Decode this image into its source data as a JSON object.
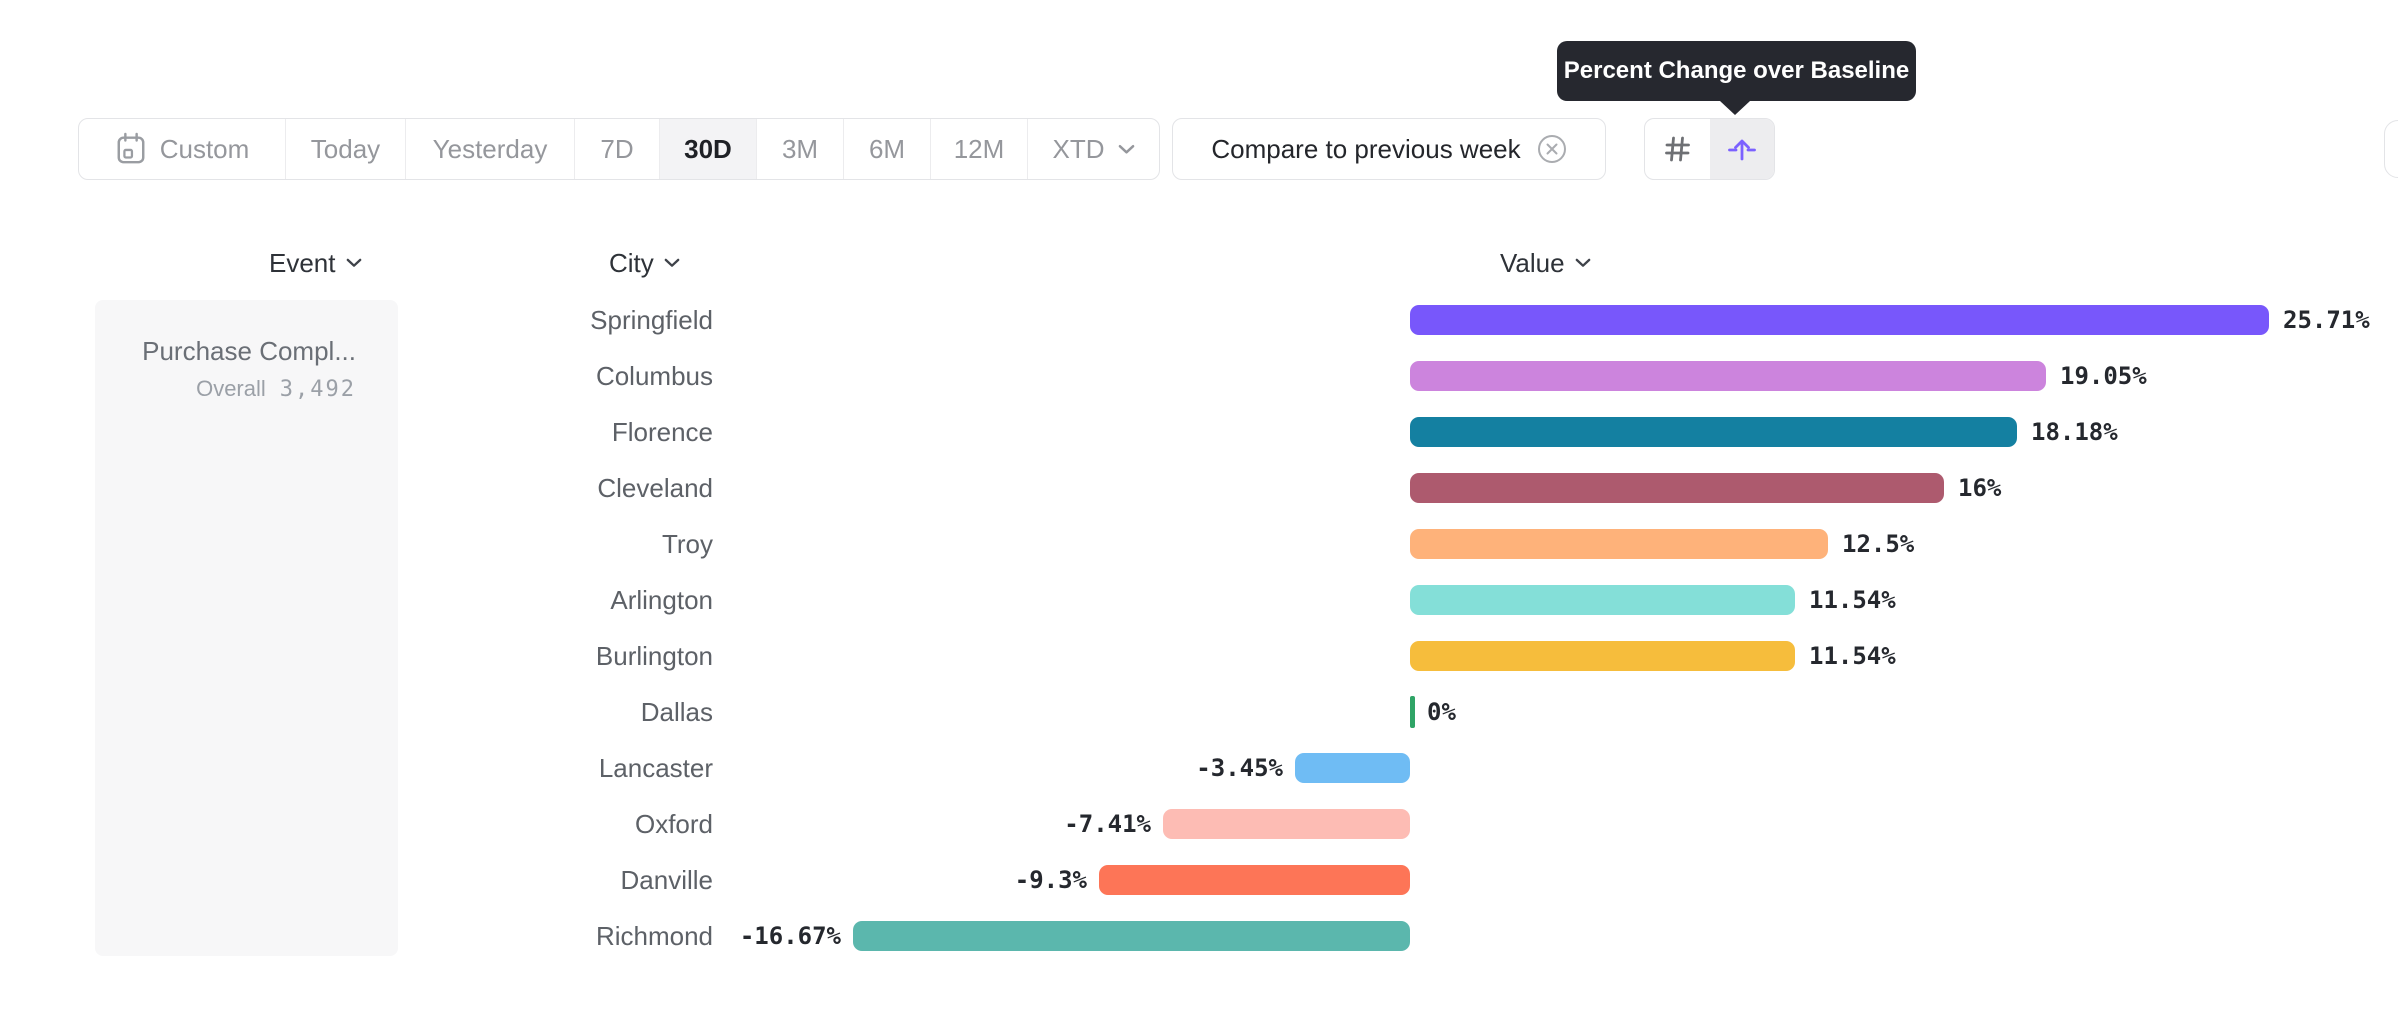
{
  "toolbar": {
    "date_ranges": [
      "Custom",
      "Today",
      "Yesterday",
      "7D",
      "30D",
      "3M",
      "6M",
      "12M",
      "XTD"
    ],
    "selected_range": "30D",
    "compare_chip_label": "Compare to previous week",
    "icon_buttons": [
      {
        "name": "hash-icon",
        "active": false
      },
      {
        "name": "arrow-up-from-baseline-icon",
        "active": true
      }
    ]
  },
  "tooltip": {
    "text": "Percent Change over Baseline"
  },
  "columns": {
    "event": "Event",
    "city": "City",
    "value": "Value"
  },
  "event_panel": {
    "event_name": "Purchase Compl...",
    "overall_label": "Overall",
    "overall_value": "3,492"
  },
  "colors": {
    "accent_purple": "#7b61ff",
    "tooltip_background": "#26282f",
    "selected_button_background": "#f3f3f5"
  },
  "chart_data": {
    "type": "bar",
    "orientation": "horizontal",
    "unit": "%",
    "baseline": 0,
    "categories": [
      "Springfield",
      "Columbus",
      "Florence",
      "Cleveland",
      "Troy",
      "Arlington",
      "Burlington",
      "Dallas",
      "Lancaster",
      "Oxford",
      "Danville",
      "Richmond"
    ],
    "values": [
      25.71,
      19.05,
      18.18,
      16,
      12.5,
      11.54,
      11.54,
      0,
      -3.45,
      -7.41,
      -9.3,
      -16.67
    ],
    "labels": [
      "25.71%",
      "19.05%",
      "18.18%",
      "16%",
      "12.5%",
      "11.54%",
      "11.54%",
      "0%",
      "-3.45%",
      "-7.41%",
      "-9.3%",
      "-16.67%"
    ],
    "colors": [
      "#7857fb",
      "#cc84dd",
      "#1480a1",
      "#ad5a6e",
      "#feb27a",
      "#84dfd8",
      "#f6bd3c",
      "#2fa466",
      "#6fbcf4",
      "#fdbcb4",
      "#fd7557",
      "#5bb7ad"
    ],
    "xlim": [
      -20,
      30
    ],
    "grid": false,
    "legend": false
  }
}
